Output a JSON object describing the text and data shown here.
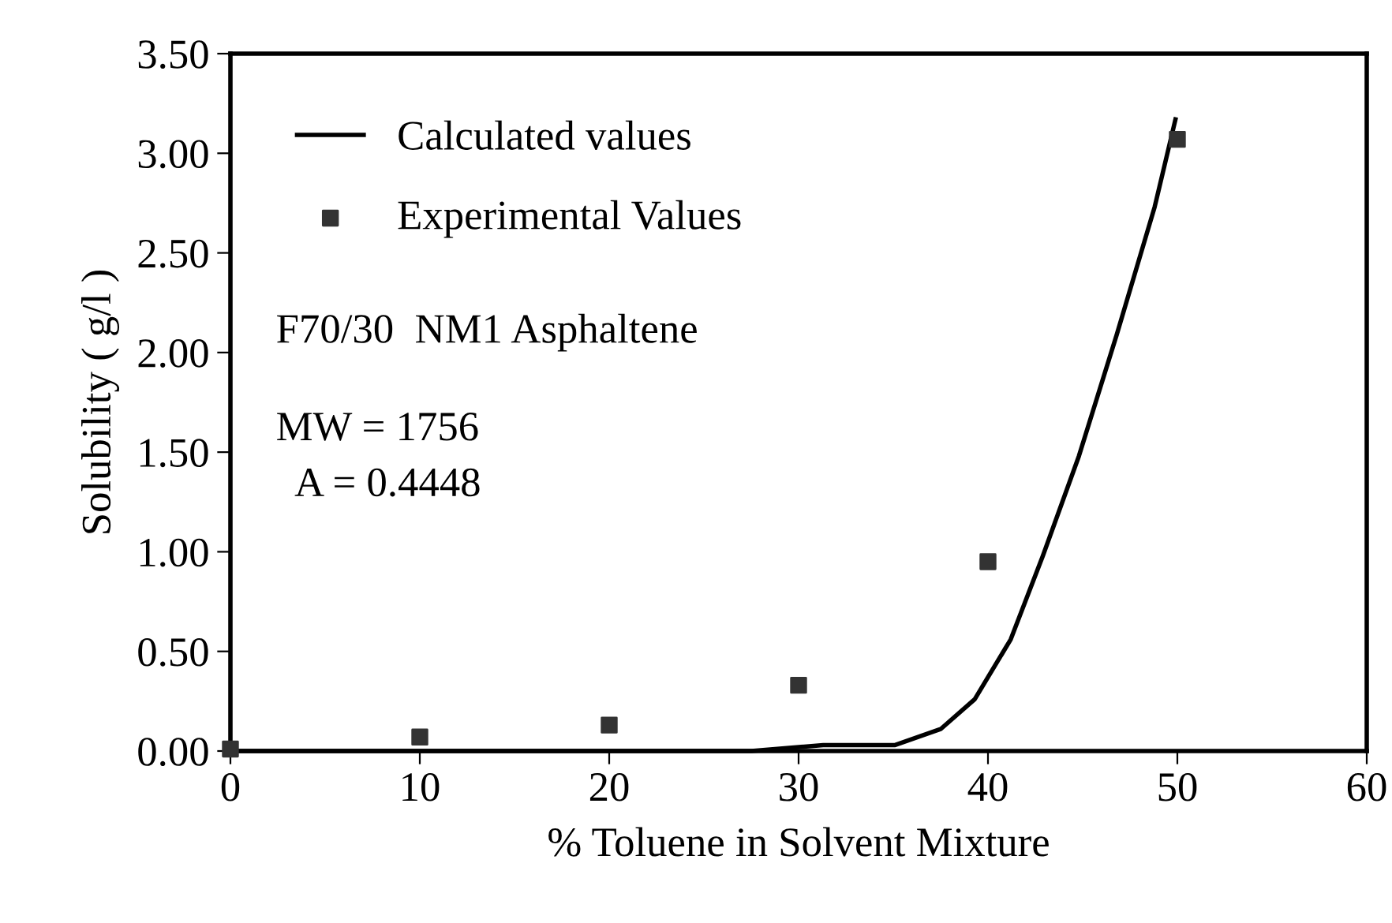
{
  "chart_data": {
    "type": "line",
    "xlabel": "% Toluene in Solvent Mixture",
    "ylabel": "Solubility ( g/l )",
    "xlim": [
      0,
      60
    ],
    "xticks": [
      0,
      10,
      20,
      30,
      40,
      50,
      60
    ],
    "ylim": [
      0,
      3.5
    ],
    "yticks": [
      {
        "value": 0,
        "label": "0.00"
      },
      {
        "value": 0.5,
        "label": "0.50"
      },
      {
        "value": 1,
        "label": "1.00"
      },
      {
        "value": 1.5,
        "label": "1.50"
      },
      {
        "value": 2,
        "label": "2.00"
      },
      {
        "value": 2.5,
        "label": "2.50"
      },
      {
        "value": 3,
        "label": "3.00"
      },
      {
        "value": 3.5,
        "label": "3.50"
      }
    ],
    "grid": false,
    "legend": "top left",
    "series": [
      {
        "name": "Calculated values",
        "color": "#000000",
        "marker": "none",
        "line_style": "solid",
        "x": [
          0,
          27.5,
          31.3,
          35.1,
          37.5,
          39.3,
          41.2,
          42.9,
          44.8,
          46.8,
          48.8,
          49.9
        ],
        "values": [
          0,
          0,
          0.03,
          0.03,
          0.11,
          0.26,
          0.56,
          0.98,
          1.48,
          2.09,
          2.73,
          3.17
        ]
      },
      {
        "name": "Experimental Values",
        "type": "scatter",
        "color": "#333333",
        "marker": "square",
        "x": [
          0,
          10,
          20,
          30,
          40,
          50
        ],
        "values": [
          0.01,
          0.07,
          0.13,
          0.33,
          0.95,
          3.07
        ]
      }
    ],
    "annotations": [
      "F70/30  NM1 Asphaltene",
      "MW = 1756",
      "  A = 0.4448"
    ]
  }
}
